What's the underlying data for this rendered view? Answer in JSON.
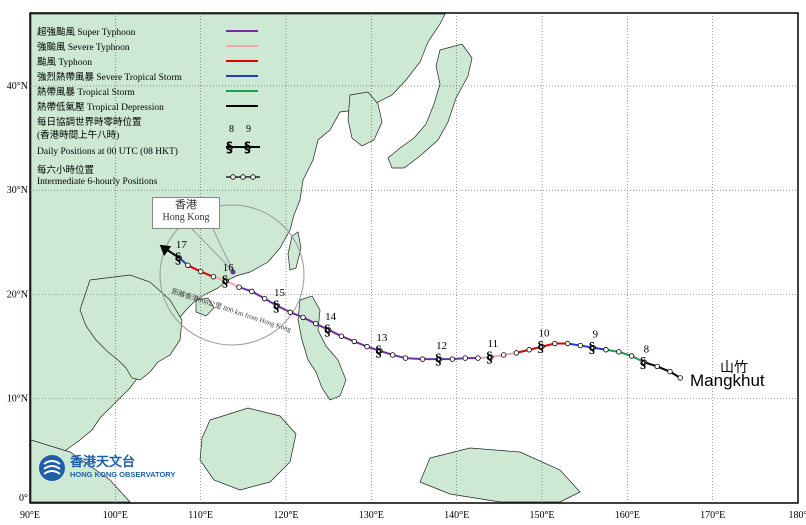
{
  "legend": {
    "super_typhoon": "超強颱風  Super Typhoon",
    "severe_typhoon": "強颱風  Severe Typhoon",
    "typhoon": "颱風  Typhoon",
    "severe_tropical_storm": "強烈熱帶風暴  Severe Tropical Storm",
    "tropical_storm": "熱帶風暴  Tropical Storm",
    "tropical_depression": "熱帶低氣壓  Tropical Depression",
    "daily_zh_1": "每日協調世界時零時位置",
    "daily_zh_2": "(香港時間上午八時)",
    "daily_en": "Daily Positions at 00 UTC (08 HKT)",
    "sample_day_a": "8",
    "sample_day_b": "9",
    "six_hourly_zh": "每六小時位置",
    "six_hourly_en": "Intermediate 6-hourly Positions",
    "colors": {
      "super_typhoon": "#7030a0",
      "severe_typhoon": "#f4a6a6",
      "typhoon": "#e00000",
      "severe_tropical_storm": "#1f3fbf",
      "tropical_storm": "#1a9e4a",
      "tropical_depression": "#000000"
    }
  },
  "hong_kong": {
    "zh": "香港",
    "en": "Hong Kong"
  },
  "range_ring_label": "距離香港800公里 800 km from Hong Kong",
  "storm": {
    "name_zh": "山竹",
    "name_en": "Mangkhut"
  },
  "logo": {
    "zh": "香港天文台",
    "en": "HONG KONG OBSERVATORY"
  },
  "axes": {
    "lon_labels": [
      "90°E",
      "100°E",
      "110°E",
      "120°E",
      "130°E",
      "140°E",
      "150°E",
      "160°E",
      "170°E",
      "180°"
    ],
    "lat_labels": [
      "0°",
      "10°N",
      "20°N",
      "30°N",
      "40°N"
    ]
  },
  "track": {
    "daily_labels": [
      "8",
      "9",
      "10",
      "11",
      "12",
      "13",
      "14",
      "15",
      "16",
      "17"
    ],
    "points": [
      {
        "lon": 166.2,
        "lat": 12.0,
        "cat": "tropical_depression"
      },
      {
        "lon": 165.0,
        "lat": 12.6,
        "cat": "tropical_depression"
      },
      {
        "lon": 163.5,
        "lat": 13.1,
        "cat": "tropical_depression"
      },
      {
        "lon": 162.0,
        "lat": 13.5,
        "cat": "tropical_storm"
      },
      {
        "lon": 160.5,
        "lat": 14.1,
        "cat": "tropical_storm"
      },
      {
        "lon": 159.0,
        "lat": 14.5,
        "cat": "tropical_storm"
      },
      {
        "lon": 157.5,
        "lat": 14.7,
        "cat": "severe_tropical_storm"
      },
      {
        "lon": 156.0,
        "lat": 14.9,
        "cat": "severe_tropical_storm"
      },
      {
        "lon": 154.5,
        "lat": 15.1,
        "cat": "severe_tropical_storm"
      },
      {
        "lon": 153.0,
        "lat": 15.3,
        "cat": "typhoon"
      },
      {
        "lon": 151.5,
        "lat": 15.3,
        "cat": "typhoon"
      },
      {
        "lon": 150.0,
        "lat": 15.0,
        "cat": "typhoon"
      },
      {
        "lon": 148.5,
        "lat": 14.7,
        "cat": "typhoon"
      },
      {
        "lon": 147.0,
        "lat": 14.4,
        "cat": "severe_typhoon"
      },
      {
        "lon": 145.5,
        "lat": 14.2,
        "cat": "severe_typhoon"
      },
      {
        "lon": 144.0,
        "lat": 14.0,
        "cat": "severe_typhoon"
      },
      {
        "lon": 142.5,
        "lat": 13.9,
        "cat": "super_typhoon"
      },
      {
        "lon": 141.0,
        "lat": 13.9,
        "cat": "super_typhoon"
      },
      {
        "lon": 139.5,
        "lat": 13.8,
        "cat": "super_typhoon"
      },
      {
        "lon": 138.0,
        "lat": 13.8,
        "cat": "super_typhoon"
      },
      {
        "lon": 136.0,
        "lat": 13.8,
        "cat": "super_typhoon"
      },
      {
        "lon": 134.0,
        "lat": 13.9,
        "cat": "super_typhoon"
      },
      {
        "lon": 132.5,
        "lat": 14.2,
        "cat": "super_typhoon"
      },
      {
        "lon": 131.0,
        "lat": 14.6,
        "cat": "super_typhoon"
      },
      {
        "lon": 129.5,
        "lat": 15.0,
        "cat": "super_typhoon"
      },
      {
        "lon": 128.0,
        "lat": 15.5,
        "cat": "super_typhoon"
      },
      {
        "lon": 126.5,
        "lat": 16.0,
        "cat": "super_typhoon"
      },
      {
        "lon": 125.0,
        "lat": 16.6,
        "cat": "super_typhoon"
      },
      {
        "lon": 123.5,
        "lat": 17.2,
        "cat": "super_typhoon"
      },
      {
        "lon": 122.0,
        "lat": 17.8,
        "cat": "super_typhoon"
      },
      {
        "lon": 120.5,
        "lat": 18.3,
        "cat": "super_typhoon"
      },
      {
        "lon": 119.0,
        "lat": 18.9,
        "cat": "super_typhoon"
      },
      {
        "lon": 117.5,
        "lat": 19.6,
        "cat": "super_typhoon"
      },
      {
        "lon": 116.0,
        "lat": 20.3,
        "cat": "super_typhoon"
      },
      {
        "lon": 114.5,
        "lat": 20.7,
        "cat": "severe_typhoon"
      },
      {
        "lon": 113.0,
        "lat": 21.3,
        "cat": "severe_typhoon"
      },
      {
        "lon": 111.5,
        "lat": 21.7,
        "cat": "typhoon"
      },
      {
        "lon": 110.0,
        "lat": 22.2,
        "cat": "typhoon"
      },
      {
        "lon": 108.5,
        "lat": 22.8,
        "cat": "severe_tropical_storm"
      },
      {
        "lon": 107.5,
        "lat": 23.5,
        "cat": "tropical_depression"
      }
    ]
  }
}
